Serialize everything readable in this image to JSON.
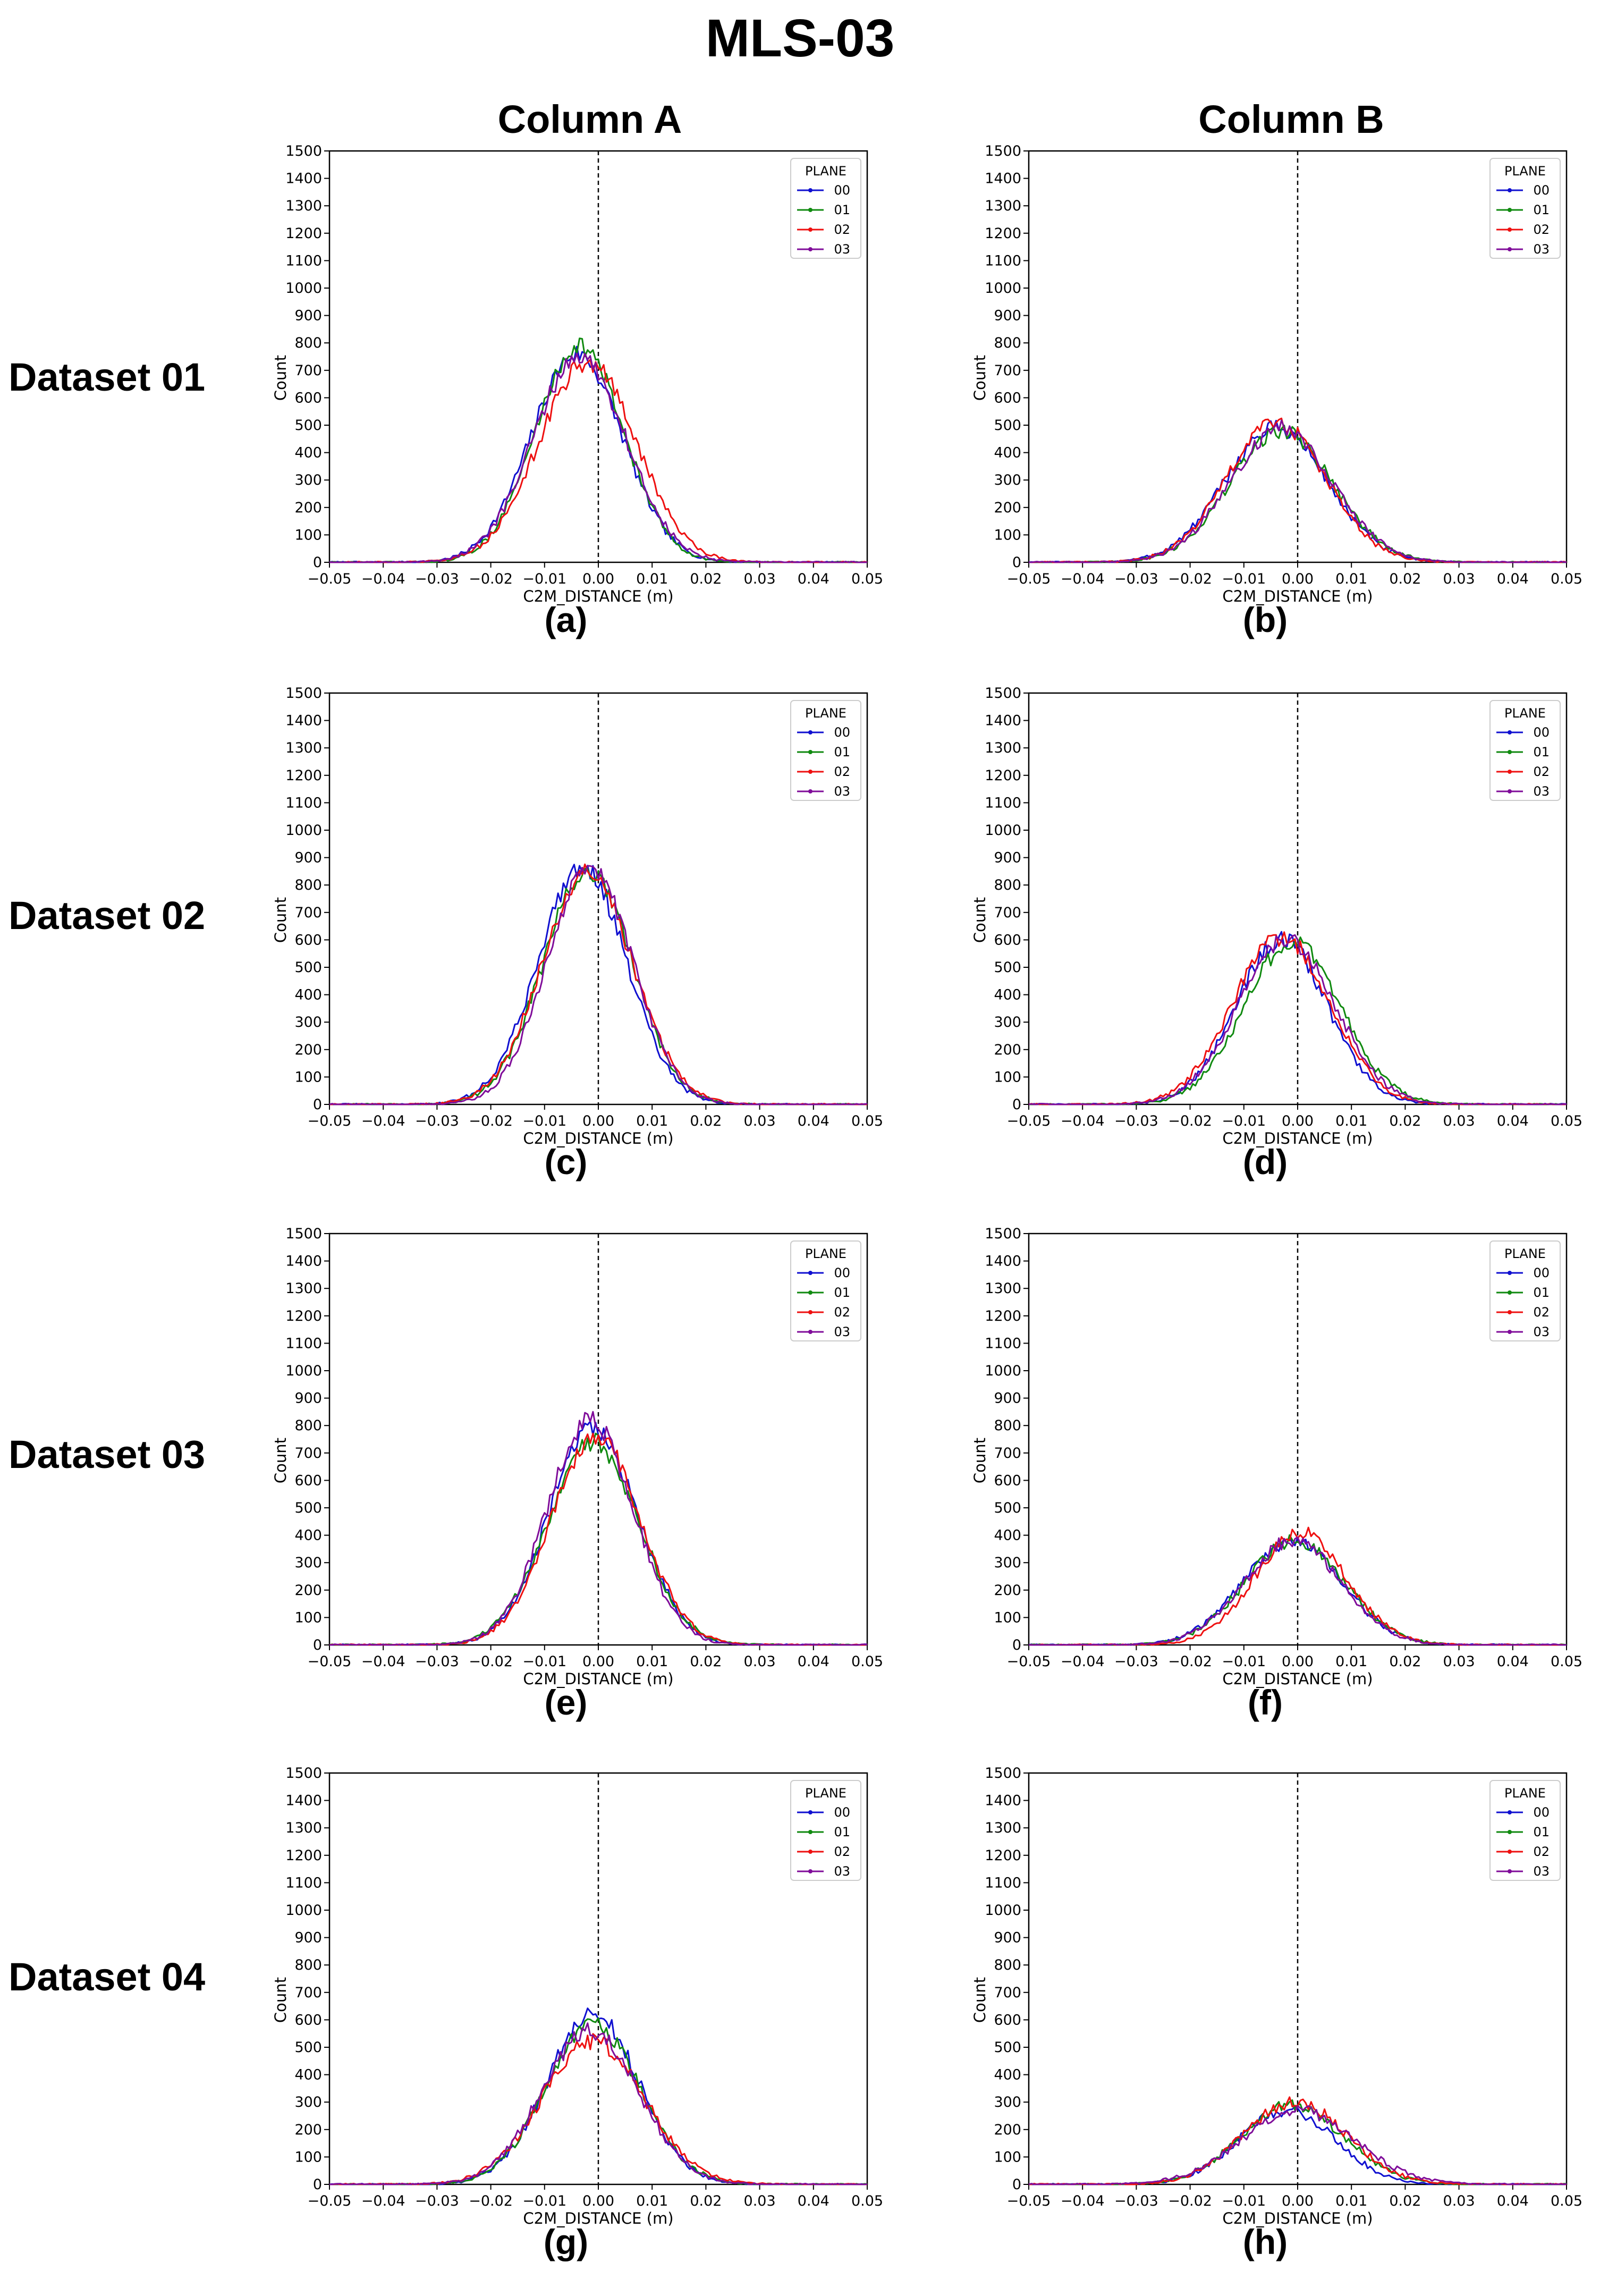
{
  "title": "MLS-03",
  "columns": [
    "Column A",
    "Column B"
  ],
  "rows": [
    "Dataset 01",
    "Dataset 02",
    "Dataset 03",
    "Dataset 04"
  ],
  "colors": {
    "00": "#1010d0",
    "01": "#108a10",
    "02": "#ee1010",
    "03": "#800d9a"
  },
  "chart_data": [
    {
      "panel": "(a)",
      "type": "line",
      "xlabel": "C2M_DISTANCE (m)",
      "ylabel": "Count",
      "xlim": [
        -0.05,
        0.05
      ],
      "ylim": [
        0,
        1500
      ],
      "xticks": [
        "−0.05",
        "−0.04",
        "−0.03",
        "−0.02",
        "−0.01",
        "0.00",
        "0.01",
        "0.02",
        "0.03",
        "0.04",
        "0.05"
      ],
      "yticks": [
        "0",
        "100",
        "200",
        "300",
        "400",
        "500",
        "600",
        "700",
        "800",
        "900",
        "1000",
        "1100",
        "1200",
        "1300",
        "1400",
        "1500"
      ],
      "reference_line_x": 0,
      "legend": {
        "title": "PLANE",
        "position": "top-right"
      },
      "series": [
        {
          "name": "00",
          "mean": -0.004,
          "sd": 0.0085,
          "peak": 760
        },
        {
          "name": "01",
          "mean": -0.0035,
          "sd": 0.0082,
          "peak": 790
        },
        {
          "name": "02",
          "mean": -0.002,
          "sd": 0.009,
          "peak": 730
        },
        {
          "name": "03",
          "mean": -0.0035,
          "sd": 0.0086,
          "peak": 750
        }
      ]
    },
    {
      "panel": "(b)",
      "type": "line",
      "xlabel": "C2M_DISTANCE (m)",
      "ylabel": "Count",
      "xlim": [
        -0.05,
        0.05
      ],
      "ylim": [
        0,
        1500
      ],
      "xticks": [
        "−0.05",
        "−0.04",
        "−0.03",
        "−0.02",
        "−0.01",
        "0.00",
        "0.01",
        "0.02",
        "0.03",
        "0.04",
        "0.05"
      ],
      "yticks": [
        "0",
        "100",
        "200",
        "300",
        "400",
        "500",
        "600",
        "700",
        "800",
        "900",
        "1000",
        "1100",
        "1200",
        "1300",
        "1400",
        "1500"
      ],
      "reference_line_x": 0,
      "legend": {
        "title": "PLANE",
        "position": "top-right"
      },
      "series": [
        {
          "name": "00",
          "mean": -0.004,
          "sd": 0.0095,
          "peak": 490
        },
        {
          "name": "01",
          "mean": -0.003,
          "sd": 0.0095,
          "peak": 480
        },
        {
          "name": "02",
          "mean": -0.004,
          "sd": 0.0092,
          "peak": 510
        },
        {
          "name": "03",
          "mean": -0.003,
          "sd": 0.0095,
          "peak": 490
        }
      ]
    },
    {
      "panel": "(c)",
      "type": "line",
      "xlabel": "C2M_DISTANCE (m)",
      "ylabel": "Count",
      "xlim": [
        -0.05,
        0.05
      ],
      "ylim": [
        0,
        1500
      ],
      "xticks": [
        "−0.05",
        "−0.04",
        "−0.03",
        "−0.02",
        "−0.01",
        "0.00",
        "0.01",
        "0.02",
        "0.03",
        "0.04",
        "0.05"
      ],
      "yticks": [
        "0",
        "100",
        "200",
        "300",
        "400",
        "500",
        "600",
        "700",
        "800",
        "900",
        "1000",
        "1100",
        "1200",
        "1300",
        "1400",
        "1500"
      ],
      "reference_line_x": 0,
      "legend": {
        "title": "PLANE",
        "position": "top-right"
      },
      "series": [
        {
          "name": "00",
          "mean": -0.003,
          "sd": 0.0082,
          "peak": 870
        },
        {
          "name": "01",
          "mean": -0.002,
          "sd": 0.0083,
          "peak": 850
        },
        {
          "name": "02",
          "mean": -0.002,
          "sd": 0.0085,
          "peak": 840
        },
        {
          "name": "03",
          "mean": -0.0015,
          "sd": 0.008,
          "peak": 860
        }
      ]
    },
    {
      "panel": "(d)",
      "type": "line",
      "xlabel": "C2M_DISTANCE (m)",
      "ylabel": "Count",
      "xlim": [
        -0.05,
        0.05
      ],
      "ylim": [
        0,
        1500
      ],
      "xticks": [
        "−0.05",
        "−0.04",
        "−0.03",
        "−0.02",
        "−0.01",
        "0.00",
        "0.01",
        "0.02",
        "0.03",
        "0.04",
        "0.05"
      ],
      "yticks": [
        "0",
        "100",
        "200",
        "300",
        "400",
        "500",
        "600",
        "700",
        "800",
        "900",
        "1000",
        "1100",
        "1200",
        "1300",
        "1400",
        "1500"
      ],
      "reference_line_x": 0,
      "legend": {
        "title": "PLANE",
        "position": "top-right"
      },
      "series": [
        {
          "name": "00",
          "mean": -0.003,
          "sd": 0.0085,
          "peak": 600
        },
        {
          "name": "01",
          "mean": -0.001,
          "sd": 0.009,
          "peak": 590
        },
        {
          "name": "02",
          "mean": -0.003,
          "sd": 0.009,
          "peak": 610
        },
        {
          "name": "03",
          "mean": -0.002,
          "sd": 0.009,
          "peak": 600
        }
      ]
    },
    {
      "panel": "(e)",
      "type": "line",
      "xlabel": "C2M_DISTANCE (m)",
      "ylabel": "Count",
      "xlim": [
        -0.05,
        0.05
      ],
      "ylim": [
        0,
        1500
      ],
      "xticks": [
        "−0.05",
        "−0.04",
        "−0.03",
        "−0.02",
        "−0.01",
        "0.00",
        "0.01",
        "0.02",
        "0.03",
        "0.04",
        "0.05"
      ],
      "yticks": [
        "0",
        "100",
        "200",
        "300",
        "400",
        "500",
        "600",
        "700",
        "800",
        "900",
        "1000",
        "1100",
        "1200",
        "1300",
        "1400",
        "1500"
      ],
      "reference_line_x": 0,
      "legend": {
        "title": "PLANE",
        "position": "top-right"
      },
      "series": [
        {
          "name": "00",
          "mean": -0.001,
          "sd": 0.0082,
          "peak": 790
        },
        {
          "name": "01",
          "mean": -0.001,
          "sd": 0.0085,
          "peak": 740
        },
        {
          "name": "02",
          "mean": -0.0005,
          "sd": 0.0083,
          "peak": 760
        },
        {
          "name": "03",
          "mean": -0.0015,
          "sd": 0.008,
          "peak": 820
        }
      ]
    },
    {
      "panel": "(f)",
      "type": "line",
      "xlabel": "C2M_DISTANCE (m)",
      "ylabel": "Count",
      "xlim": [
        -0.05,
        0.05
      ],
      "ylim": [
        0,
        1500
      ],
      "xticks": [
        "−0.05",
        "−0.04",
        "−0.03",
        "−0.02",
        "−0.01",
        "0.00",
        "0.01",
        "0.02",
        "0.03",
        "0.04",
        "0.05"
      ],
      "yticks": [
        "0",
        "100",
        "200",
        "300",
        "400",
        "500",
        "600",
        "700",
        "800",
        "900",
        "1000",
        "1100",
        "1200",
        "1300",
        "1400",
        "1500"
      ],
      "reference_line_x": 0,
      "legend": {
        "title": "PLANE",
        "position": "top-right"
      },
      "series": [
        {
          "name": "00",
          "mean": -0.001,
          "sd": 0.0092,
          "peak": 380
        },
        {
          "name": "01",
          "mean": -0.0005,
          "sd": 0.0092,
          "peak": 380
        },
        {
          "name": "02",
          "mean": 0.0005,
          "sd": 0.0085,
          "peak": 410
        },
        {
          "name": "03",
          "mean": -0.001,
          "sd": 0.009,
          "peak": 380
        }
      ]
    },
    {
      "panel": "(g)",
      "type": "line",
      "xlabel": "C2M_DISTANCE (m)",
      "ylabel": "Count",
      "xlim": [
        -0.05,
        0.05
      ],
      "ylim": [
        0,
        1500
      ],
      "xticks": [
        "−0.05",
        "−0.04",
        "−0.03",
        "−0.02",
        "−0.01",
        "0.00",
        "0.01",
        "0.02",
        "0.03",
        "0.04",
        "0.05"
      ],
      "yticks": [
        "0",
        "100",
        "200",
        "300",
        "400",
        "500",
        "600",
        "700",
        "800",
        "900",
        "1000",
        "1100",
        "1200",
        "1300",
        "1400",
        "1500"
      ],
      "reference_line_x": 0,
      "legend": {
        "title": "PLANE",
        "position": "top-right"
      },
      "series": [
        {
          "name": "00",
          "mean": -0.001,
          "sd": 0.0085,
          "peak": 620
        },
        {
          "name": "01",
          "mean": -0.001,
          "sd": 0.0088,
          "peak": 580
        },
        {
          "name": "02",
          "mean": -0.001,
          "sd": 0.0095,
          "peak": 520
        },
        {
          "name": "03",
          "mean": -0.0015,
          "sd": 0.009,
          "peak": 560
        }
      ]
    },
    {
      "panel": "(h)",
      "type": "line",
      "xlabel": "C2M_DISTANCE (m)",
      "ylabel": "Count",
      "xlim": [
        -0.05,
        0.05
      ],
      "ylim": [
        0,
        1500
      ],
      "xticks": [
        "−0.05",
        "−0.04",
        "−0.03",
        "−0.02",
        "−0.01",
        "0.00",
        "0.01",
        "0.02",
        "0.03",
        "0.04",
        "0.05"
      ],
      "yticks": [
        "0",
        "100",
        "200",
        "300",
        "400",
        "500",
        "600",
        "700",
        "800",
        "900",
        "1000",
        "1100",
        "1200",
        "1300",
        "1400",
        "1500"
      ],
      "reference_line_x": 0,
      "legend": {
        "title": "PLANE",
        "position": "top-right"
      },
      "series": [
        {
          "name": "00",
          "mean": -0.002,
          "sd": 0.009,
          "peak": 270
        },
        {
          "name": "01",
          "mean": -0.001,
          "sd": 0.0095,
          "peak": 290
        },
        {
          "name": "02",
          "mean": -0.0005,
          "sd": 0.0095,
          "peak": 300
        },
        {
          "name": "03",
          "mean": 0.0,
          "sd": 0.0105,
          "peak": 270
        }
      ]
    }
  ]
}
